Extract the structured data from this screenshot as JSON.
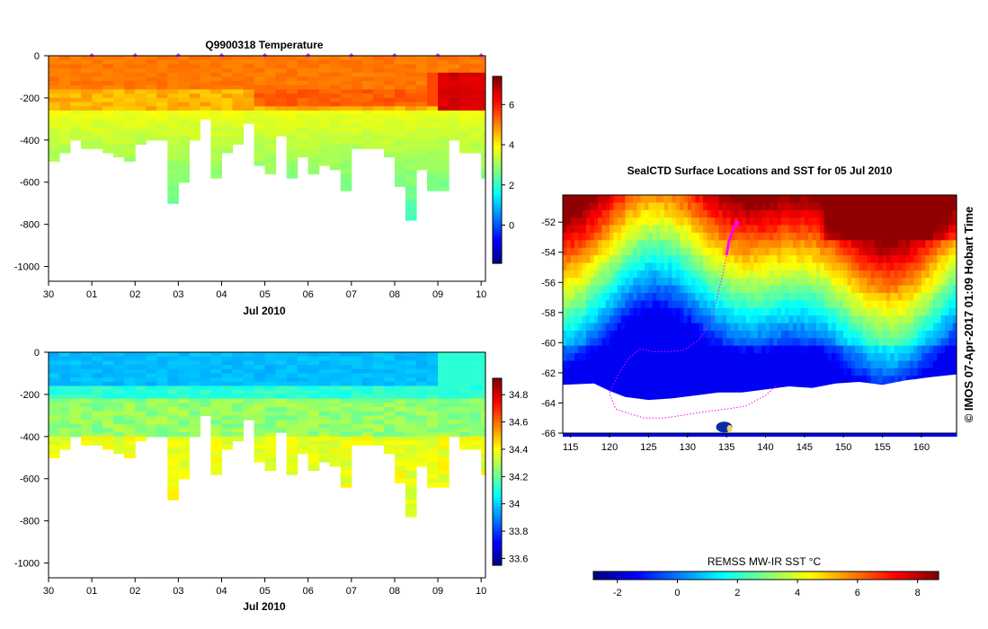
{
  "chart_data": [
    {
      "type": "heatmap",
      "title": "Q9900318  Temperature",
      "xlabel": "Jul 2010",
      "ylabel": "",
      "x_tick_labels": [
        "30",
        "01",
        "02",
        "03",
        "04",
        "05",
        "06",
        "07",
        "08",
        "09",
        "10"
      ],
      "y_tick_labels": [
        "0",
        "-200",
        "-400",
        "-600",
        "-800",
        "-1000"
      ],
      "ylim": [
        -1070,
        0
      ],
      "xlim": [
        0,
        10.1
      ],
      "colorbar": {
        "min": -1.9,
        "max": 7.4,
        "ticks": [
          0,
          2,
          4,
          6
        ],
        "tick_labels": [
          "0",
          "2",
          "4",
          "6"
        ]
      },
      "profile_times": [
        0.0,
        0.25,
        0.5,
        0.75,
        1.0,
        1.25,
        1.5,
        1.75,
        2.0,
        2.25,
        2.5,
        2.75,
        3.0,
        3.25,
        3.5,
        3.75,
        4.0,
        4.25,
        4.5,
        4.75,
        5.0,
        5.25,
        5.5,
        5.75,
        6.0,
        6.25,
        6.5,
        6.75,
        7.0,
        7.25,
        7.5,
        7.75,
        8.0,
        8.25,
        8.5,
        8.75,
        9.0,
        9.25,
        9.5,
        9.75,
        10.0
      ],
      "profile_max_depths": [
        500,
        460,
        400,
        430,
        440,
        460,
        470,
        500,
        410,
        400,
        400,
        690,
        590,
        400,
        300,
        580,
        460,
        420,
        320,
        520,
        550,
        380,
        580,
        480,
        560,
        520,
        530,
        630,
        430,
        430,
        430,
        480,
        610,
        780,
        530,
        630,
        630,
        390,
        450,
        450,
        570
      ],
      "surface_markers_days": [
        1,
        2,
        3,
        4,
        5,
        6,
        7,
        8,
        9,
        10
      ]
    },
    {
      "type": "heatmap",
      "title": "",
      "xlabel": "Jul 2010",
      "x_tick_labels": [
        "30",
        "01",
        "02",
        "03",
        "04",
        "05",
        "06",
        "07",
        "08",
        "09",
        "10"
      ],
      "y_tick_labels": [
        "0",
        "-200",
        "-400",
        "-600",
        "-800",
        "-1000"
      ],
      "ylim": [
        -1070,
        0
      ],
      "xlim": [
        0,
        10.1
      ],
      "colorbar": {
        "min": 33.55,
        "max": 34.92,
        "ticks": [
          33.6,
          33.8,
          34,
          34.2,
          34.4,
          34.6,
          34.8
        ],
        "tick_labels": [
          "33.6",
          "33.8",
          "34",
          "34.2",
          "34.4",
          "34.6",
          "34.8"
        ]
      },
      "profile_times": [
        0.0,
        0.25,
        0.5,
        0.75,
        1.0,
        1.25,
        1.5,
        1.75,
        2.0,
        2.25,
        2.5,
        2.75,
        3.0,
        3.25,
        3.5,
        3.75,
        4.0,
        4.25,
        4.5,
        4.75,
        5.0,
        5.25,
        5.5,
        5.75,
        6.0,
        6.25,
        6.5,
        6.75,
        7.0,
        7.25,
        7.5,
        7.75,
        8.0,
        8.25,
        8.5,
        8.75,
        9.0,
        9.25,
        9.5,
        9.75,
        10.0
      ],
      "profile_max_depths": [
        500,
        460,
        400,
        430,
        440,
        460,
        470,
        500,
        410,
        400,
        400,
        690,
        590,
        400,
        300,
        580,
        460,
        420,
        320,
        520,
        550,
        380,
        580,
        480,
        560,
        520,
        530,
        630,
        430,
        430,
        430,
        480,
        610,
        780,
        530,
        630,
        630,
        390,
        450,
        450,
        570
      ]
    },
    {
      "type": "heatmap",
      "title": "SealCTD Surface Locations and SST for 05 Jul 2010",
      "xlabel": "",
      "ylabel": "",
      "x_tick_labels": [
        "115",
        "120",
        "125",
        "130",
        "135",
        "140",
        "145",
        "150",
        "155",
        "160"
      ],
      "y_tick_labels": [
        "-52",
        "-54",
        "-56",
        "-58",
        "-60",
        "-62",
        "-64",
        "-66"
      ],
      "xlim": [
        114,
        164.5
      ],
      "ylim": [
        -66,
        -50.2
      ],
      "colorbar": {
        "label": "REMSS MW-IR SST °C",
        "min": -2.8,
        "max": 8.7,
        "ticks": [
          -2,
          0,
          2,
          4,
          6,
          8
        ],
        "tick_labels": [
          "-2",
          "0",
          "2",
          "4",
          "6",
          "8"
        ]
      },
      "track": [
        [
          136.3,
          -52.1
        ],
        [
          135.8,
          -52.5
        ],
        [
          135.3,
          -53.3
        ],
        [
          135.0,
          -54.2
        ],
        [
          134.5,
          -55.5
        ],
        [
          133.8,
          -57.0
        ],
        [
          133.0,
          -58.6
        ],
        [
          131.5,
          -59.8
        ],
        [
          129.5,
          -60.5
        ],
        [
          127.5,
          -60.6
        ],
        [
          125.5,
          -60.6
        ],
        [
          124.0,
          -60.4
        ],
        [
          122.5,
          -61.0
        ],
        [
          121.0,
          -62.2
        ],
        [
          120.0,
          -63.4
        ],
        [
          120.8,
          -64.4
        ],
        [
          122.5,
          -64.7
        ],
        [
          124.5,
          -65.0
        ],
        [
          127.0,
          -65.0
        ],
        [
          129.5,
          -64.8
        ],
        [
          132.0,
          -64.6
        ],
        [
          135.0,
          -64.4
        ],
        [
          137.5,
          -64.2
        ],
        [
          140.0,
          -63.5
        ],
        [
          141.5,
          -62.8
        ]
      ]
    }
  ],
  "credit": "© IMOS 07-Apr-2017 01:09 Hobart Time"
}
